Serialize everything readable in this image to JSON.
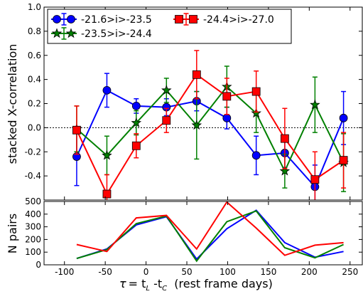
{
  "chart_data": [
    {
      "type": "line",
      "ylabel": "stacked X-correlation",
      "ylim": [
        -0.6,
        1.0
      ],
      "yticks": [
        "1.0",
        "0.8",
        "0.6",
        "0.4",
        "0.2",
        "0.0",
        "-0.2",
        "-0.4"
      ],
      "legend": {
        "placement": "top-left, 2 columns"
      },
      "series": [
        {
          "name": "-21.6>i>-23.5",
          "color": "#0000ff",
          "marker": "circle",
          "x": [
            -85,
            -48,
            -12,
            25,
            62,
            99,
            135,
            170,
            207,
            242
          ],
          "y": [
            -0.24,
            0.31,
            0.18,
            0.17,
            0.22,
            0.08,
            -0.23,
            -0.21,
            -0.49,
            0.08
          ],
          "err": [
            0.24,
            0.14,
            0.06,
            0.07,
            0.08,
            0.09,
            0.16,
            0.12,
            0.18,
            0.22
          ]
        },
        {
          "name": "-23.5>i>-24.4",
          "color": "#008000",
          "marker": "star",
          "x": [
            -85,
            -48,
            -12,
            25,
            62,
            99,
            135,
            170,
            207,
            242
          ],
          "y": [
            -0.01,
            -0.23,
            0.04,
            0.31,
            0.02,
            0.34,
            0.12,
            -0.36,
            0.19,
            -0.29
          ],
          "err": [
            0.19,
            0.16,
            0.1,
            0.1,
            0.28,
            0.17,
            0.16,
            0.14,
            0.23,
            0.24
          ]
        },
        {
          "name": "-24.4>i>-27.0",
          "color": "#ff0000",
          "marker": "square",
          "x": [
            -85,
            -48,
            -12,
            25,
            62,
            99,
            135,
            170,
            207,
            242
          ],
          "y": [
            -0.02,
            -0.55,
            -0.15,
            0.06,
            0.44,
            0.26,
            0.3,
            -0.09,
            -0.43,
            -0.27
          ],
          "err": [
            0.2,
            0.16,
            0.1,
            0.1,
            0.2,
            0.15,
            0.17,
            0.25,
            0.23,
            0.23
          ]
        }
      ]
    },
    {
      "type": "line",
      "ylabel": "N pairs",
      "xlabel_parts": {
        "tau": "τ",
        "eq": "= t",
        "sub1": "L",
        "mid": " -t",
        "sub2": "C",
        "unit": "  (rest frame days)"
      },
      "xlim": [
        -125,
        265
      ],
      "ylim": [
        0,
        500
      ],
      "xticks": [
        "-100",
        "-50",
        "0",
        "50",
        "100",
        "150",
        "200",
        "250"
      ],
      "yticks": [
        "500",
        "400",
        "300",
        "200",
        "100",
        "0"
      ],
      "series": [
        {
          "color": "#0000ff",
          "x": [
            -85,
            -48,
            -12,
            25,
            62,
            99,
            135,
            170,
            207,
            242
          ],
          "y": [
            50,
            125,
            315,
            380,
            45,
            285,
            430,
            175,
            60,
            105
          ]
        },
        {
          "color": "#008000",
          "x": [
            -85,
            -48,
            -12,
            25,
            62,
            99,
            135,
            170,
            207,
            242
          ],
          "y": [
            50,
            120,
            325,
            385,
            30,
            340,
            425,
            135,
            55,
            160
          ]
        },
        {
          "color": "#ff0000",
          "x": [
            -85,
            -48,
            -12,
            25,
            62,
            99,
            135,
            170,
            207,
            242
          ],
          "y": [
            160,
            105,
            370,
            390,
            125,
            495,
            290,
            75,
            155,
            175
          ]
        }
      ]
    }
  ]
}
